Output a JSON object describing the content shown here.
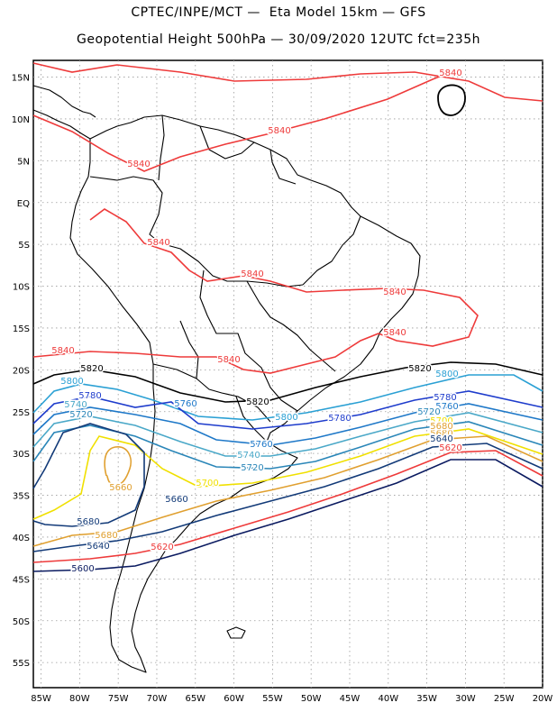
{
  "header": {
    "line1": "CPTEC/INPE/MCT —  Eta Model 15km — GFS",
    "line2": "Geopotential Height 500hPa — 30/09/2020 12UTC fct=235h"
  },
  "axes": {
    "lat_labels": [
      "15N",
      "10N",
      "5N",
      "EQ",
      "5S",
      "10S",
      "15S",
      "20S",
      "25S",
      "30S",
      "35S",
      "40S",
      "45S",
      "50S",
      "55S"
    ],
    "lat_values": [
      15,
      10,
      5,
      0,
      -5,
      -10,
      -15,
      -20,
      -25,
      -30,
      -35,
      -40,
      -45,
      -50,
      -55
    ],
    "lon_labels": [
      "85W",
      "80W",
      "75W",
      "70W",
      "65W",
      "60W",
      "55W",
      "50W",
      "45W",
      "40W",
      "35W",
      "30W",
      "25W",
      "20W"
    ],
    "lon_values": [
      -85,
      -80,
      -75,
      -70,
      -65,
      -60,
      -55,
      -50,
      -45,
      -40,
      -35,
      -30,
      -25,
      -20
    ],
    "lat_range": [
      -58,
      17
    ],
    "lon_range": [
      -86,
      -20
    ],
    "grid": "dotted"
  },
  "contours": [
    {
      "level": 5840,
      "color": "#ee3a3a",
      "labels": [
        "5840",
        "5840",
        "5840",
        "5840",
        "5840",
        "5840",
        "5840",
        "5840",
        "5840",
        "5840"
      ]
    },
    {
      "level": 5820,
      "color": "#000000",
      "labels": [
        "5820",
        "5820",
        "5820"
      ]
    },
    {
      "level": 5800,
      "color": "#2aa0d4",
      "labels": [
        "5800",
        "5800",
        "5800"
      ]
    },
    {
      "level": 5780,
      "color": "#1e3ccc",
      "labels": [
        "5780",
        "5780",
        "5780"
      ]
    },
    {
      "level": 5760,
      "color": "#1e78c8",
      "labels": [
        "5760",
        "5760",
        "5760"
      ]
    },
    {
      "level": 5740,
      "color": "#4aa8c8",
      "labels": [
        "5740",
        "5740",
        "5740"
      ]
    },
    {
      "level": 5720,
      "color": "#2a86b8",
      "labels": [
        "5720",
        "5720",
        "5720"
      ]
    },
    {
      "level": 5700,
      "color": "#f0e000",
      "labels": [
        "5700",
        "5700"
      ]
    },
    {
      "level": 5680,
      "color": "#e0a030",
      "labels": [
        "5680",
        "5680",
        "5680"
      ]
    },
    {
      "level": 5660,
      "color": "#e0a030",
      "labels": [
        "5660"
      ]
    },
    {
      "level": 5640,
      "color": "#123a78",
      "labels": [
        "5640",
        "5640"
      ]
    },
    {
      "level": 5620,
      "color": "#ee3a3a",
      "labels": [
        "5620",
        "5620"
      ]
    },
    {
      "level": 5600,
      "color": "#0a1a60",
      "labels": [
        "5600"
      ]
    },
    {
      "level": 5660,
      "color": "#123a78",
      "labels": [
        "5660"
      ]
    },
    {
      "level": 5680,
      "color": "#123a78",
      "labels": [
        "5680"
      ]
    }
  ]
}
